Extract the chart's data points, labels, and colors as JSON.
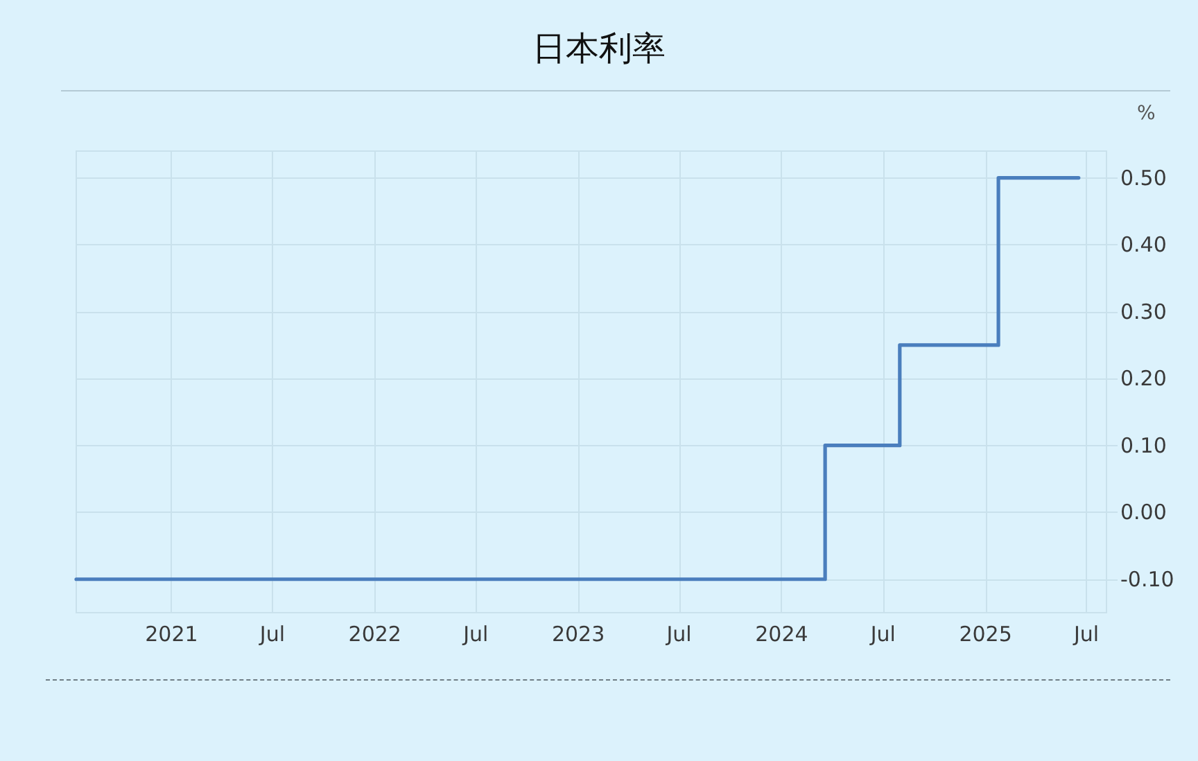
{
  "chart_data": {
    "type": "step",
    "title": "日本利率",
    "ylabel": "%",
    "x": [
      "2020-07-14",
      "2024-03-19",
      "2024-07-31",
      "2025-01-24",
      "2025-06-17"
    ],
    "values": [
      -0.1,
      0.1,
      0.25,
      0.5,
      0.5
    ],
    "color": "#4a7ebd",
    "xlim": [
      "2020-07-14",
      "2025-08-06"
    ],
    "xticks": [
      {
        "value": "2021-01-01",
        "label": "2021"
      },
      {
        "value": "2021-07-01",
        "label": "Jul"
      },
      {
        "value": "2022-01-01",
        "label": "2022"
      },
      {
        "value": "2022-07-01",
        "label": "Jul"
      },
      {
        "value": "2023-01-01",
        "label": "2023"
      },
      {
        "value": "2023-07-01",
        "label": "Jul"
      },
      {
        "value": "2024-01-01",
        "label": "2024"
      },
      {
        "value": "2024-07-01",
        "label": "Jul"
      },
      {
        "value": "2025-01-01",
        "label": "2025"
      },
      {
        "value": "2025-07-01",
        "label": "Jul"
      }
    ],
    "ylim": [
      -0.15,
      0.54
    ],
    "yticks": [
      {
        "value": -0.1,
        "label": "-0.10"
      },
      {
        "value": 0,
        "label": "0.00"
      },
      {
        "value": 0.1,
        "label": "0.10"
      },
      {
        "value": 0.2,
        "label": "0.20"
      },
      {
        "value": 0.3,
        "label": "0.30"
      },
      {
        "value": 0.4,
        "label": "0.40"
      },
      {
        "value": 0.5,
        "label": "0.50"
      }
    ],
    "grid": true,
    "marker": "none",
    "line_style": "solid"
  }
}
